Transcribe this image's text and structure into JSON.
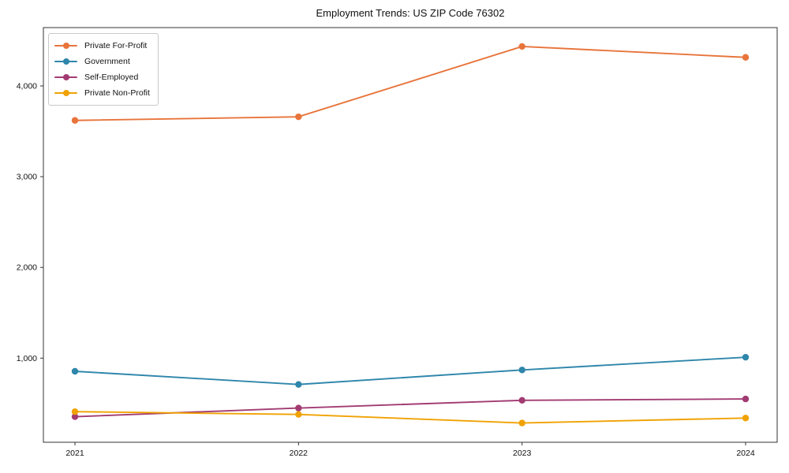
{
  "chart_data": {
    "type": "line",
    "title": "Employment Trends: US ZIP Code 76302",
    "xlabel": "",
    "ylabel": "",
    "x": [
      "2021",
      "2022",
      "2023",
      "2024"
    ],
    "ylim": [
      73,
      4643
    ],
    "yticks": [
      1000,
      2000,
      3000,
      4000
    ],
    "ytick_labels": [
      "1,000",
      "2,000",
      "3,000",
      "4,000"
    ],
    "grid": false,
    "legend_position": "upper left",
    "series": [
      {
        "name": "Private For-Profit",
        "color": "#e8743b",
        "values": [
          3620,
          3660,
          4435,
          4315
        ]
      },
      {
        "name": "Government",
        "color": "#2e86ab",
        "values": [
          855,
          710,
          870,
          1010
        ]
      },
      {
        "name": "Self-Employed",
        "color": "#a23b72",
        "values": [
          355,
          450,
          535,
          550
        ]
      },
      {
        "name": "Private Non-Profit",
        "color": "#f0a202",
        "values": [
          410,
          380,
          285,
          340
        ]
      }
    ]
  }
}
